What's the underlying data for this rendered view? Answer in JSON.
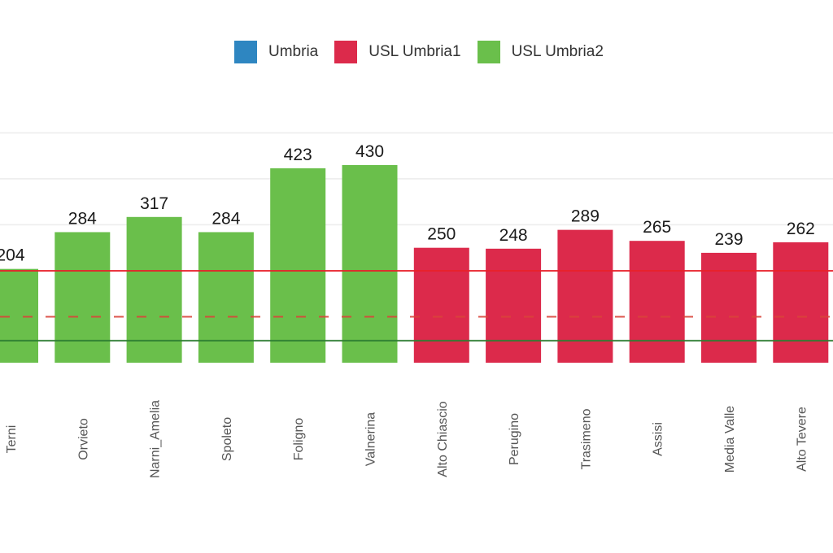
{
  "chart_data": {
    "type": "bar",
    "title": "",
    "xlabel": "",
    "ylabel": "",
    "ylim": [
      0,
      500
    ],
    "grid": true,
    "legend_position": "top-center",
    "legend": [
      {
        "name": "Umbria",
        "color": "#2e86c1"
      },
      {
        "name": "USL Umbria1",
        "color": "#dc2a4b"
      },
      {
        "name": "USL Umbria2",
        "color": "#6abf4b"
      }
    ],
    "categories": [
      "Terni",
      "Orvieto",
      "Narni_Amelia",
      "Spoleto",
      "Foligno",
      "Valnerina",
      "Alto Chiascio",
      "Perugino",
      "Trasimeno",
      "Assisi",
      "Media Valle",
      "Alto Tevere"
    ],
    "values": [
      204,
      284,
      317,
      284,
      423,
      430,
      250,
      248,
      289,
      265,
      239,
      262
    ],
    "groups": [
      "USL Umbria2",
      "USL Umbria2",
      "USL Umbria2",
      "USL Umbria2",
      "USL Umbria2",
      "USL Umbria2",
      "USL Umbria1",
      "USL Umbria1",
      "USL Umbria1",
      "USL Umbria1",
      "USL Umbria1",
      "USL Umbria1"
    ],
    "gridlines": [
      300,
      400,
      500
    ],
    "reference_lines": [
      {
        "value": 200,
        "style": "solid",
        "color": "#e8202a"
      },
      {
        "value": 100,
        "style": "dashed",
        "color": "#d9443a"
      },
      {
        "value": 48,
        "style": "solid",
        "color": "#2e7d32"
      }
    ]
  }
}
